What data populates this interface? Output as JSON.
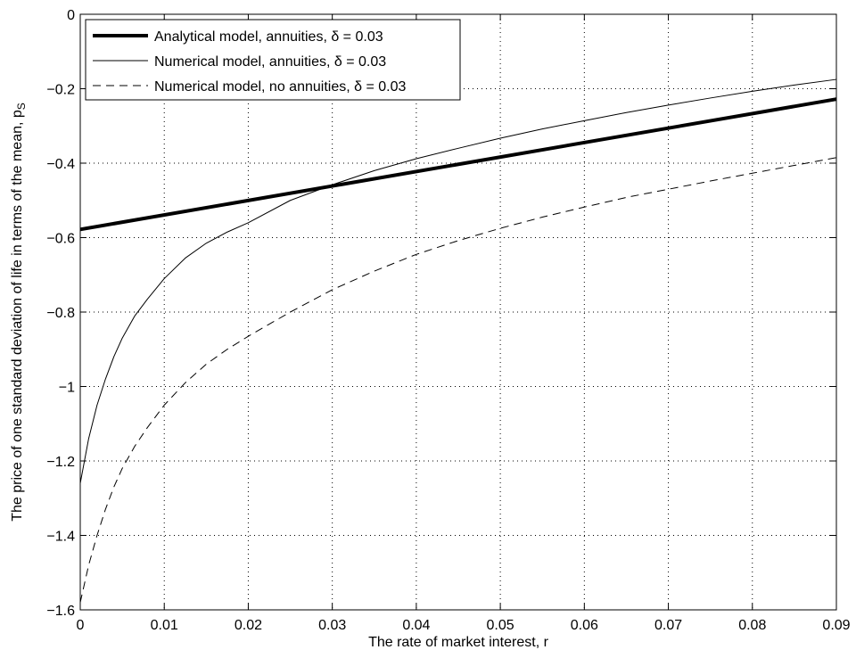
{
  "chart_data": {
    "type": "line",
    "xlabel": "The rate of market interest, r",
    "ylabel": "The price of one standard deviation of life in terms of the mean, p",
    "ylabel_sub": "S",
    "xlim": [
      0,
      0.09
    ],
    "ylim": [
      -1.6,
      0
    ],
    "grid": true,
    "legend_position": "top-left",
    "x_ticks": [
      0,
      0.01,
      0.02,
      0.03,
      0.04,
      0.05,
      0.06,
      0.07,
      0.08,
      0.09
    ],
    "x_tick_labels": [
      "0",
      "0.01",
      "0.02",
      "0.03",
      "0.04",
      "0.05",
      "0.06",
      "0.07",
      "0.08",
      "0.09"
    ],
    "y_ticks": [
      0,
      -0.2,
      -0.4,
      -0.6,
      -0.8,
      -1,
      -1.2,
      -1.4,
      -1.6
    ],
    "y_tick_labels": [
      "0",
      "−0.2",
      "−0.4",
      "−0.6",
      "−0.8",
      "−1",
      "−1.2",
      "−1.4",
      "−1.6"
    ],
    "series": [
      {
        "name": "Analytical model, annuities, δ = 0.03",
        "style": "thick-solid",
        "color": "#000000",
        "x": [
          0,
          0.09
        ],
        "y": [
          -0.578,
          -0.228
        ]
      },
      {
        "name": "Numerical model, annuities, δ = 0.03",
        "style": "thin-solid",
        "color": "#000000",
        "x": [
          0,
          0.001,
          0.002,
          0.003,
          0.004,
          0.005,
          0.0065,
          0.008,
          0.01,
          0.0125,
          0.015,
          0.0175,
          0.02,
          0.025,
          0.03,
          0.035,
          0.04,
          0.045,
          0.05,
          0.055,
          0.06,
          0.065,
          0.07,
          0.075,
          0.08,
          0.085,
          0.09
        ],
        "y": [
          -1.26,
          -1.14,
          -1.05,
          -0.98,
          -0.92,
          -0.87,
          -0.81,
          -0.765,
          -0.71,
          -0.655,
          -0.615,
          -0.585,
          -0.56,
          -0.5,
          -0.458,
          -0.42,
          -0.388,
          -0.36,
          -0.333,
          -0.308,
          -0.286,
          -0.264,
          -0.244,
          -0.225,
          -0.207,
          -0.19,
          -0.175
        ]
      },
      {
        "name": "Numerical model, no annuities, δ = 0.03",
        "style": "dashed",
        "color": "#000000",
        "x": [
          0,
          0.001,
          0.002,
          0.003,
          0.004,
          0.005,
          0.0065,
          0.008,
          0.01,
          0.0125,
          0.015,
          0.0175,
          0.02,
          0.025,
          0.03,
          0.035,
          0.04,
          0.045,
          0.05,
          0.055,
          0.06,
          0.065,
          0.07,
          0.075,
          0.08,
          0.085,
          0.09
        ],
        "y": [
          -1.58,
          -1.48,
          -1.4,
          -1.33,
          -1.27,
          -1.22,
          -1.16,
          -1.11,
          -1.05,
          -0.99,
          -0.94,
          -0.9,
          -0.865,
          -0.8,
          -0.74,
          -0.69,
          -0.645,
          -0.608,
          -0.575,
          -0.545,
          -0.518,
          -0.492,
          -0.47,
          -0.448,
          -0.427,
          -0.406,
          -0.385
        ]
      }
    ]
  }
}
